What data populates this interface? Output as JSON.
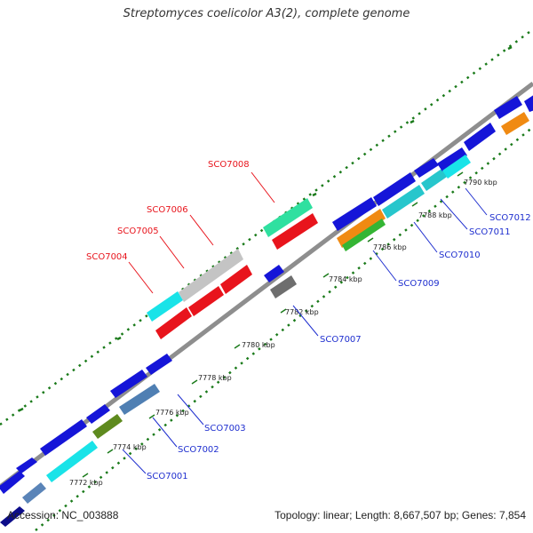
{
  "title": "Streptomyces coelicolor A3(2), complete genome",
  "footer": {
    "accession": "Accession: NC_003888",
    "summary": "Topology: linear; Length: 8,667,507 bp; Genes: 7,854"
  },
  "ticks": [
    "7772 kbp",
    "7774 kbp",
    "7776 kbp",
    "7778 kbp",
    "7780 kbp",
    "7782 kbp",
    "7784 kbp",
    "7786 kbp",
    "7788 kbp",
    "7790 kbp"
  ],
  "genes_highlight": [
    "SCO7004",
    "SCO7005",
    "SCO7006",
    "SCO7008"
  ],
  "genes_labeled": [
    "SCO7001",
    "SCO7002",
    "SCO7003",
    "SCO7007",
    "SCO7009",
    "SCO7010",
    "SCO7011",
    "SCO7012"
  ],
  "colors": {
    "highlight_label": "#e8141c",
    "gene_label": "#1f2fcf",
    "backbone": "#9a9a9a",
    "dots": "#1a7a1a"
  }
}
